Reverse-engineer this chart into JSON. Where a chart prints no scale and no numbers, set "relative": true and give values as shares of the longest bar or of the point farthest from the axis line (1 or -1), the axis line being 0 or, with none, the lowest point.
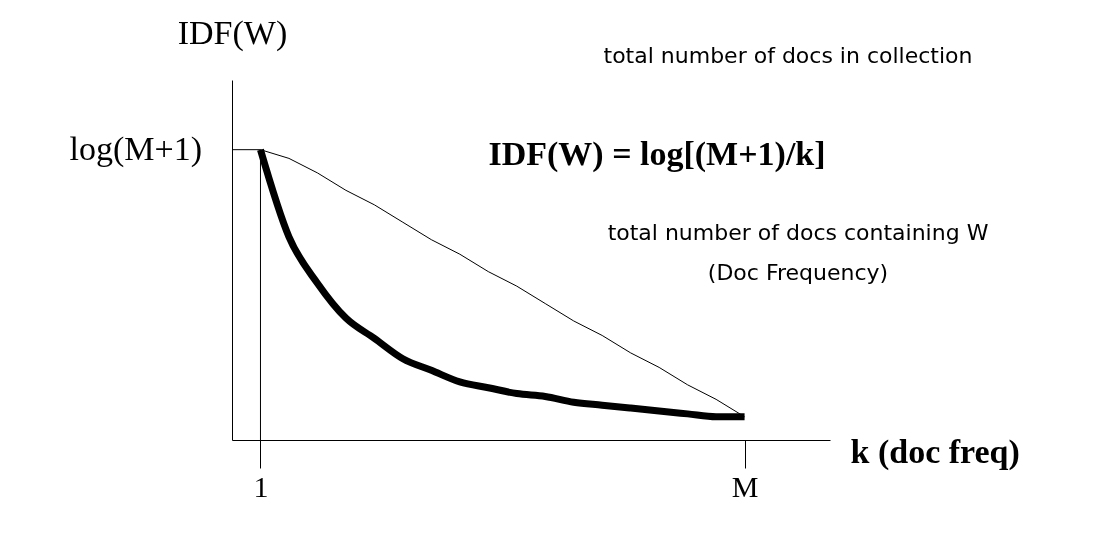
{
  "chart_data": {
    "type": "line",
    "relative": true,
    "xlabel": "k (doc freq)",
    "ylabel": "IDF(W)",
    "categories": [
      null,
      "1",
      null,
      null,
      null,
      null,
      null,
      null,
      null,
      null,
      null,
      null,
      null,
      null,
      null,
      null,
      null,
      null,
      "M",
      null,
      null,
      null
    ],
    "series": [
      {
        "color": "#000000",
        "values": [
          null,
          1.0,
          0.7,
          0.54,
          0.42,
          0.35,
          0.28,
          0.24,
          0.2,
          0.18,
          0.16,
          0.15,
          0.13,
          0.12,
          0.11,
          0.1,
          0.09,
          0.08,
          0.08,
          null,
          null,
          null
        ]
      },
      {
        "color": "#000000",
        "values": [
          1.0,
          1.0,
          0.97,
          0.92,
          0.86,
          0.81,
          0.75,
          0.69,
          0.64,
          0.58,
          0.53,
          0.47,
          0.41,
          0.36,
          0.3,
          0.25,
          0.19,
          0.14,
          0.08,
          null,
          null,
          null
        ]
      }
    ],
    "ref_lines": [
      {
        "axis": "x",
        "value": "1"
      }
    ],
    "annotations": [
      "log(M+1)",
      "IDF(W) = log[(M+1)/k]",
      "total number of docs in collection",
      "total number of docs containing W",
      "(Doc Frequency)"
    ],
    "grid": false,
    "legend": false,
    "marker": "none",
    "line_style": "solid"
  }
}
